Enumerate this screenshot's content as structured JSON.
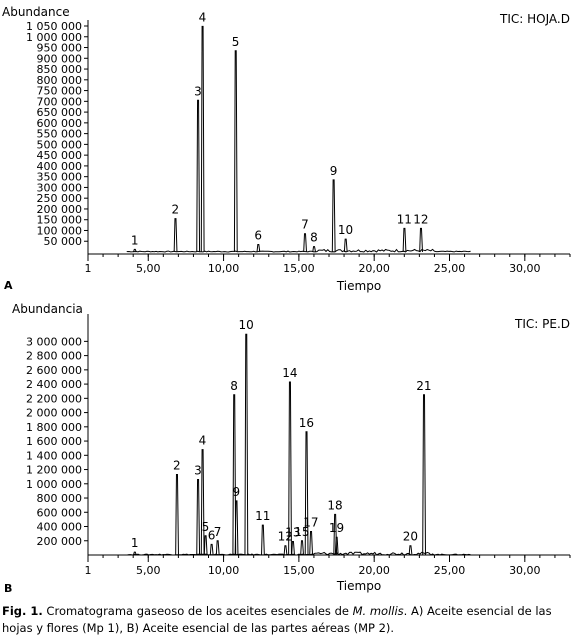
{
  "chart_data": [
    {
      "type": "line",
      "panel_letter": "A",
      "ylabel": "Abundance",
      "xlabel": "Tiempo",
      "legend": "TIC: HOJA.D",
      "xlim": [
        1,
        33
      ],
      "ylim": [
        0,
        1050000
      ],
      "x_ticks": [
        {
          "v": 1,
          "label": "1"
        },
        {
          "v": 5,
          "label": "5,00"
        },
        {
          "v": 10,
          "label": "10,00"
        },
        {
          "v": 15,
          "label": "15,00"
        },
        {
          "v": 20,
          "label": "20,00"
        },
        {
          "v": 25,
          "label": "25,00"
        },
        {
          "v": 30,
          "label": "30,00"
        }
      ],
      "y_ticks": [
        {
          "v": 50000,
          "label": "50 000"
        },
        {
          "v": 100000,
          "label": "100 000"
        },
        {
          "v": 150000,
          "label": "150 000"
        },
        {
          "v": 200000,
          "label": "200 000"
        },
        {
          "v": 250000,
          "label": "250 000"
        },
        {
          "v": 300000,
          "label": "300 000"
        },
        {
          "v": 350000,
          "label": "350 000"
        },
        {
          "v": 400000,
          "label": "400 000"
        },
        {
          "v": 450000,
          "label": "450 000"
        },
        {
          "v": 500000,
          "label": "500 000"
        },
        {
          "v": 550000,
          "label": "550 000"
        },
        {
          "v": 600000,
          "label": "600 000"
        },
        {
          "v": 650000,
          "label": "650 000"
        },
        {
          "v": 700000,
          "label": "700 000"
        },
        {
          "v": 750000,
          "label": "750 000"
        },
        {
          "v": 800000,
          "label": "800 000"
        },
        {
          "v": 850000,
          "label": "850 000"
        },
        {
          "v": 900000,
          "label": "900 000"
        },
        {
          "v": 950000,
          "label": "950 000"
        },
        {
          "v": 1000000,
          "label": "1 000 000"
        },
        {
          "v": 1050000,
          "label": "1 050 000"
        }
      ],
      "peaks": [
        {
          "label": "1",
          "x": 4.1,
          "y": 12000
        },
        {
          "label": "2",
          "x": 6.8,
          "y": 155000
        },
        {
          "label": "3",
          "x": 8.3,
          "y": 705000
        },
        {
          "label": "4",
          "x": 8.6,
          "y": 1048000
        },
        {
          "label": "5",
          "x": 10.8,
          "y": 935000
        },
        {
          "label": "6",
          "x": 12.3,
          "y": 35000
        },
        {
          "label": "7",
          "x": 15.4,
          "y": 85000
        },
        {
          "label": "8",
          "x": 16.0,
          "y": 25000
        },
        {
          "label": "9",
          "x": 17.3,
          "y": 335000
        },
        {
          "label": "10",
          "x": 18.1,
          "y": 60000
        },
        {
          "label": "11",
          "x": 22.0,
          "y": 110000
        },
        {
          "label": "12",
          "x": 23.1,
          "y": 110000
        }
      ]
    },
    {
      "type": "line",
      "panel_letter": "B",
      "ylabel": "Abundancia",
      "xlabel": "Tiempo",
      "legend": "TIC: PE.D",
      "xlim": [
        1,
        33
      ],
      "ylim": [
        0,
        3300000
      ],
      "x_ticks": [
        {
          "v": 1,
          "label": "1"
        },
        {
          "v": 5,
          "label": "5,00"
        },
        {
          "v": 10,
          "label": "10,00"
        },
        {
          "v": 15,
          "label": "15,00"
        },
        {
          "v": 20,
          "label": "20,00"
        },
        {
          "v": 25,
          "label": "25,00"
        },
        {
          "v": 30,
          "label": "30,00"
        }
      ],
      "y_ticks": [
        {
          "v": 200000,
          "label": "200 000"
        },
        {
          "v": 400000,
          "label": "400 000"
        },
        {
          "v": 600000,
          "label": "600 000"
        },
        {
          "v": 800000,
          "label": "800 000"
        },
        {
          "v": 1000000,
          "label": "1 000 000"
        },
        {
          "v": 1200000,
          "label": "1 200 000"
        },
        {
          "v": 1400000,
          "label": "1 400 000"
        },
        {
          "v": 1600000,
          "label": "1 600 000"
        },
        {
          "v": 1800000,
          "label": "1 800 000"
        },
        {
          "v": 2000000,
          "label": "2 000 000"
        },
        {
          "v": 2200000,
          "label": "2 200 000"
        },
        {
          "v": 2400000,
          "label": "2 400 000"
        },
        {
          "v": 2600000,
          "label": "2 600 000"
        },
        {
          "v": 2800000,
          "label": "2 800 000"
        },
        {
          "v": 3000000,
          "label": "3 000 000"
        }
      ],
      "peaks": [
        {
          "label": "1",
          "x": 4.1,
          "y": 40000
        },
        {
          "label": "2",
          "x": 6.9,
          "y": 1130000
        },
        {
          "label": "3",
          "x": 8.3,
          "y": 1060000
        },
        {
          "label": "4",
          "x": 8.6,
          "y": 1480000
        },
        {
          "label": "5",
          "x": 8.8,
          "y": 270000
        },
        {
          "label": "6",
          "x": 9.2,
          "y": 150000
        },
        {
          "label": "7",
          "x": 9.6,
          "y": 200000
        },
        {
          "label": "8",
          "x": 10.7,
          "y": 2250000
        },
        {
          "label": "9",
          "x": 10.85,
          "y": 760000
        },
        {
          "label": "10",
          "x": 11.5,
          "y": 3100000
        },
        {
          "label": "11",
          "x": 12.6,
          "y": 420000
        },
        {
          "label": "12",
          "x": 14.1,
          "y": 130000
        },
        {
          "label": "13",
          "x": 14.6,
          "y": 190000
        },
        {
          "label": "14",
          "x": 14.4,
          "y": 2430000
        },
        {
          "label": "15",
          "x": 15.2,
          "y": 200000
        },
        {
          "label": "16",
          "x": 15.5,
          "y": 1730000
        },
        {
          "label": "17",
          "x": 15.8,
          "y": 330000
        },
        {
          "label": "18",
          "x": 17.4,
          "y": 570000
        },
        {
          "label": "19",
          "x": 17.5,
          "y": 250000
        },
        {
          "label": "20",
          "x": 22.4,
          "y": 130000
        },
        {
          "label": "21",
          "x": 23.3,
          "y": 2250000
        }
      ]
    }
  ],
  "caption": {
    "fig_label": "Fig. 1.",
    "text_before": " Cromatograma gaseoso de los aceites esenciales de ",
    "species": "M. mollis",
    "text_after": ". A) Aceite esencial de las hojas y flores (Mp 1), B) Aceite esencial de las partes aéreas (MP 2)."
  }
}
